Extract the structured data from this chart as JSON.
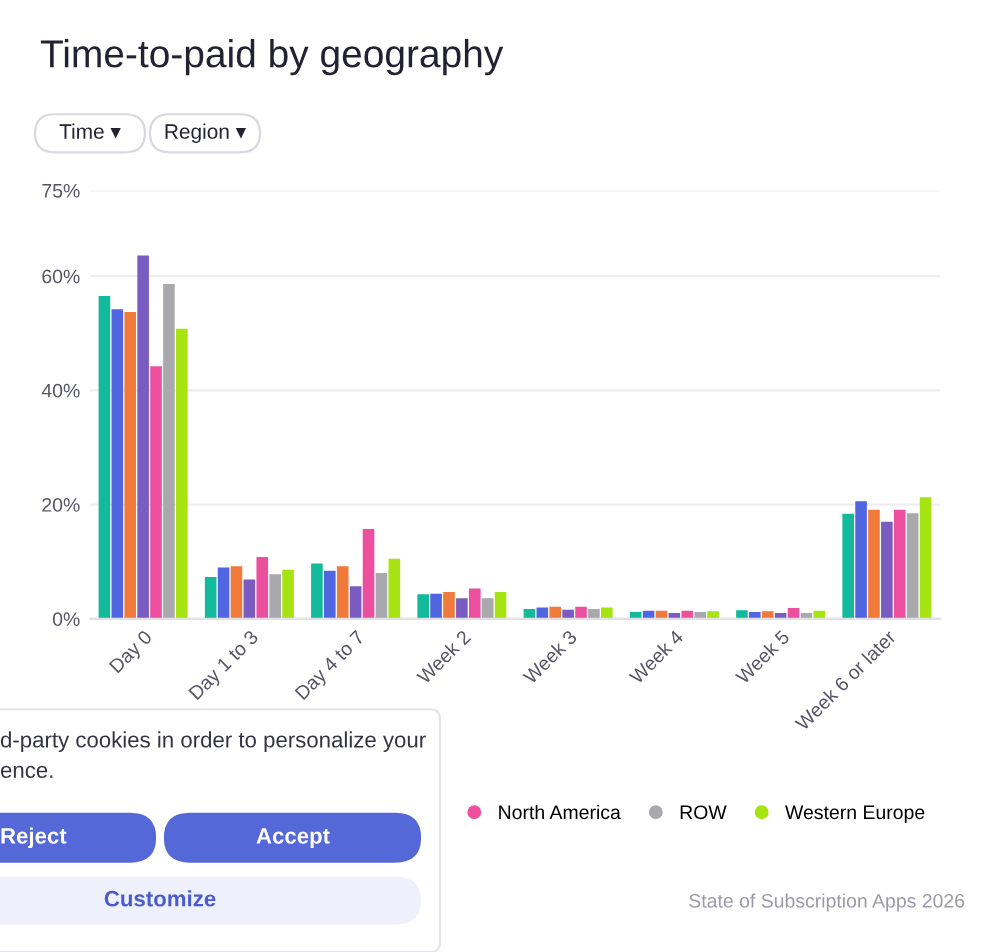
{
  "chart_data": {
    "type": "bar",
    "title": "Time-to-paid by geography",
    "categories": [
      "Day 0",
      "Day 1 to 3",
      "Day 4 to 7",
      "Week 2",
      "Week 3",
      "Week 4",
      "Week 5",
      "Week 6 or later"
    ],
    "series": [
      {
        "color": "#12b99a",
        "values": [
          56.5,
          7.3,
          9.7,
          4.3,
          1.7,
          1.2,
          1.5,
          18.4
        ]
      },
      {
        "color": "#4f66e0",
        "values": [
          54.2,
          9.0,
          8.4,
          4.4,
          2.0,
          1.4,
          1.2,
          20.6
        ]
      },
      {
        "color": "#f07a3a",
        "values": [
          53.7,
          9.2,
          9.2,
          4.7,
          2.1,
          1.4,
          1.3,
          19.1
        ]
      },
      {
        "color": "#7a5cc0",
        "values": [
          63.6,
          6.9,
          5.7,
          3.6,
          1.6,
          1.0,
          1.0,
          17.0
        ]
      },
      {
        "name": "North America",
        "color": "#ec4f9e",
        "values": [
          44.2,
          10.8,
          15.7,
          5.3,
          2.1,
          1.4,
          1.9,
          19.1
        ]
      },
      {
        "name": "ROW",
        "color": "#a9a9ad",
        "values": [
          58.6,
          7.8,
          8.0,
          3.6,
          1.7,
          1.2,
          1.0,
          18.5
        ]
      },
      {
        "name": "Western Europe",
        "color": "#a6e310",
        "values": [
          50.8,
          8.6,
          10.5,
          4.7,
          2.0,
          1.3,
          1.4,
          21.3
        ]
      }
    ],
    "ylim": [
      0,
      75
    ],
    "yticks": [
      {
        "value": 0,
        "label": "0%"
      },
      {
        "value": 20,
        "label": "20%"
      },
      {
        "value": 40,
        "label": "40%"
      },
      {
        "value": 60,
        "label": "60%"
      },
      {
        "value": 75,
        "label": "75%"
      }
    ],
    "grid": "y",
    "legend": "bottom",
    "annotations": [
      "Time ▾",
      "Region ▾",
      "d-party cookies in order to personalize your\nence.",
      "Reject",
      "Accept",
      "Customize",
      "State of Subscription Apps 2026"
    ]
  }
}
